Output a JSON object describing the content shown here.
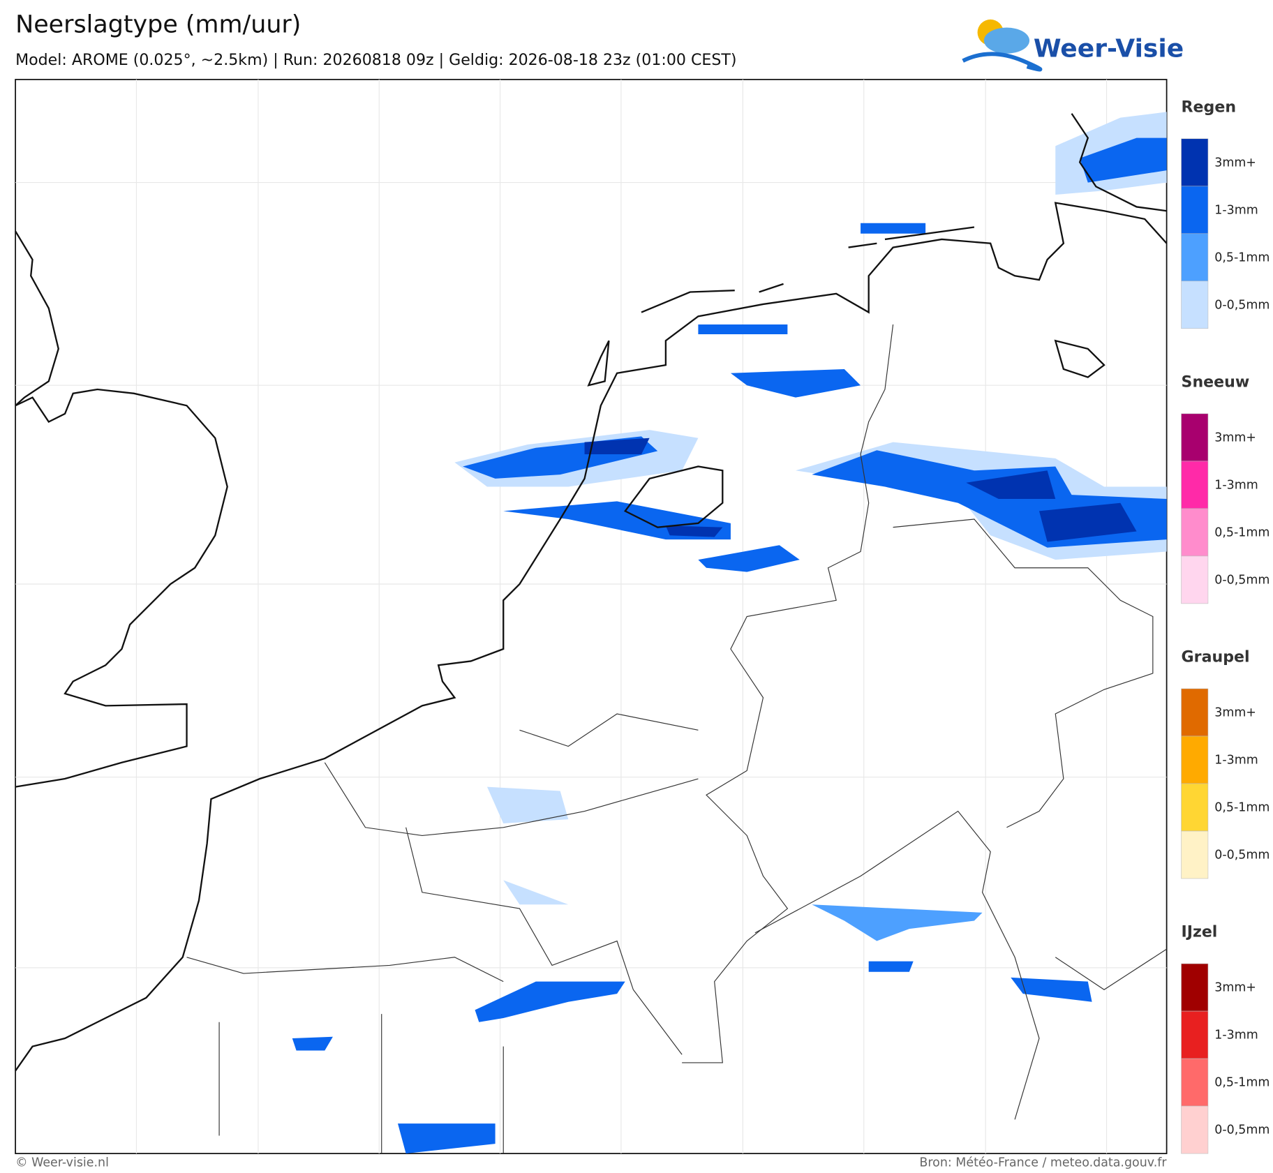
{
  "header": {
    "title": "Neerslagtype (mm/uur)",
    "subtitle": "Model: AROME (0.025°, ~2.5km)  |  Run: 20260818 09z  |  Geldig: 2026-08-18 23z (01:00 CEST)",
    "logo": "Weer-Visie"
  },
  "legend": [
    {
      "title": "Regen",
      "items": [
        {
          "label": "3mm+",
          "color": "#0033b0"
        },
        {
          "label": "1-3mm",
          "color": "#0a66f0"
        },
        {
          "label": "0,5-1mm",
          "color": "#4da0ff"
        },
        {
          "label": "0-0,5mm",
          "color": "#c6e0ff"
        }
      ]
    },
    {
      "title": "Sneeuw",
      "items": [
        {
          "label": "3mm+",
          "color": "#a8006e"
        },
        {
          "label": "1-3mm",
          "color": "#ff2aa8"
        },
        {
          "label": "0,5-1mm",
          "color": "#ff8ccc"
        },
        {
          "label": "0-0,5mm",
          "color": "#ffd6ee"
        }
      ]
    },
    {
      "title": "Graupel",
      "items": [
        {
          "label": "3mm+",
          "color": "#e06a00"
        },
        {
          "label": "1-3mm",
          "color": "#ffaa00"
        },
        {
          "label": "0,5-1mm",
          "color": "#ffd633"
        },
        {
          "label": "0-0,5mm",
          "color": "#fff2c6"
        }
      ]
    },
    {
      "title": "IJzel",
      "items": [
        {
          "label": "3mm+",
          "color": "#a00000"
        },
        {
          "label": "1-3mm",
          "color": "#e82020"
        },
        {
          "label": "0,5-1mm",
          "color": "#ff6a6a"
        },
        {
          "label": "0-0,5mm",
          "color": "#ffd0d0"
        }
      ]
    }
  ],
  "footer": {
    "left": "© Weer-visie.nl",
    "right": "Bron: Météo-France / meteo.data.gouv.fr"
  }
}
